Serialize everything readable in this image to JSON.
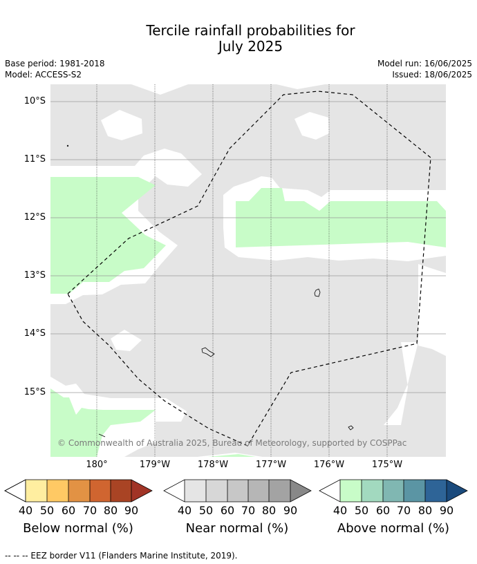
{
  "title": {
    "line1": "Tercile rainfall probabilities for",
    "line2": "July 2025"
  },
  "meta": {
    "base_period": "Base period: 1981-2018",
    "model": "Model: ACCESS-S2",
    "model_run": "Model run: 16/06/2025",
    "issued": "Issued: 18/06/2025"
  },
  "map": {
    "latitude_labels": [
      "10°S",
      "11°S",
      "12°S",
      "13°S",
      "14°S",
      "15°S"
    ],
    "longitude_labels": [
      "180°",
      "179°W",
      "178°W",
      "177°W",
      "176°W",
      "175°W"
    ],
    "copyright": "© Commonwealth of Australia 2025, Bureau of Meteorology, supported by COSPPac",
    "eez_border": "dashed",
    "colors": {
      "near_normal_40": "#e5e5e5",
      "above_normal_40": "#c8fcc8",
      "below_40_fill": "#ffffff",
      "coastline": "#000000"
    }
  },
  "colorbars": [
    {
      "title": "Below normal (%)",
      "ticks": [
        "40",
        "50",
        "60",
        "70",
        "80",
        "90"
      ],
      "colors": [
        "#ffeea0",
        "#ffc964",
        "#e29244",
        "#d06530",
        "#a94424",
        "#a13426"
      ]
    },
    {
      "title": "Near normal (%)",
      "ticks": [
        "40",
        "50",
        "60",
        "70",
        "80",
        "90"
      ],
      "colors": [
        "#e5e5e5",
        "#d7d7d7",
        "#c7c7c7",
        "#b6b6b6",
        "#a3a3a3",
        "#888888"
      ]
    },
    {
      "title": "Above normal (%)",
      "ticks": [
        "40",
        "50",
        "60",
        "70",
        "80",
        "90"
      ],
      "colors": [
        "#c8fcc8",
        "#a2d9bf",
        "#80b7b2",
        "#5b95a4",
        "#2e6497",
        "#1a4a7c"
      ]
    }
  ],
  "footnote": "--  --  -- EEZ border V11 (Flanders Marine Institute, 2019)."
}
